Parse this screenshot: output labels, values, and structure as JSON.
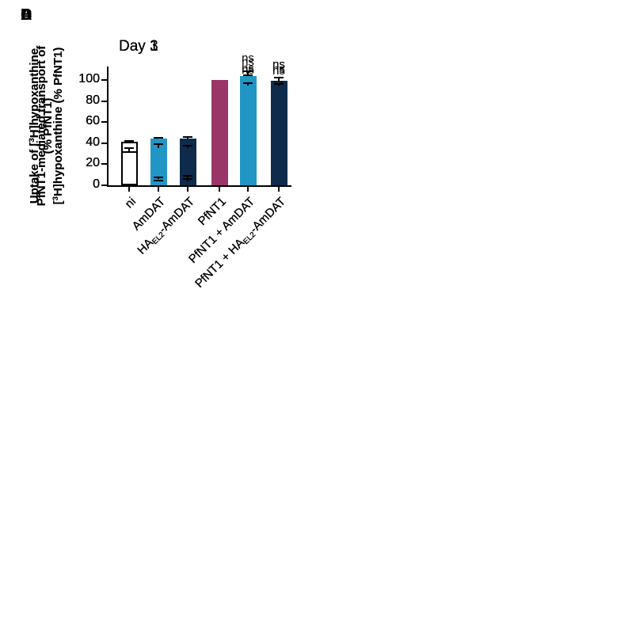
{
  "figure_bg": "#ffffff",
  "palette": {
    "white_bar_fill": "#ffffff",
    "white_bar_border": "#000000",
    "light_blue": "#2196c4",
    "navy": "#0e2b4c",
    "magenta": "#9a3568",
    "axis_color": "#000000",
    "text_color": "#000000"
  },
  "chart_data": [
    {
      "type": "bar",
      "panel_letter": "A",
      "title": "Day 1",
      "ylabel_lines": [
        "Uptake of [^3^H]hypoxanthine",
        "(% PfNT1)"
      ],
      "categories": [
        "ni",
        "AmDAT",
        "HA~EL2~-AmDAT",
        "PfNT1",
        "PfNT1 + AmDAT",
        "PfNT1 + HA~EL2~-AmDAT"
      ],
      "values": [
        41,
        44,
        44,
        100,
        102,
        99
      ],
      "errors": [
        2,
        2,
        2.5,
        0,
        3,
        4
      ],
      "annotations": [
        "",
        "",
        "",
        "",
        "ns",
        "ns"
      ],
      "bar_colors": [
        "white_bar",
        "light_blue",
        "navy",
        "magenta",
        "light_blue",
        "navy"
      ],
      "ylim": [
        0,
        112
      ],
      "yticks": [
        0,
        20,
        40,
        60,
        80,
        100
      ],
      "grid": false,
      "legend": "none"
    },
    {
      "type": "bar",
      "panel_letter": "B",
      "title": "Day 3",
      "ylabel_lines": [
        "Uptake of [^3^H]hypoxanthine",
        "(% PfNT1)"
      ],
      "categories": [
        "ni",
        "AmDAT",
        "HA~EL2~-AmDAT",
        "PfNT1",
        "PfNT1 + AmDAT",
        "PfNT1 + HA~EL2~-AmDAT"
      ],
      "values": [
        32,
        35,
        35,
        100,
        97,
        96
      ],
      "errors": [
        4,
        4.5,
        3,
        0,
        2,
        2.5
      ],
      "annotations": [
        "",
        "",
        "",
        "",
        "ns",
        "ns"
      ],
      "bar_colors": [
        "white_bar",
        "light_blue",
        "navy",
        "magenta",
        "light_blue",
        "navy"
      ],
      "ylim": [
        0,
        112
      ],
      "yticks": [
        0,
        20,
        40,
        60,
        80,
        100
      ],
      "grid": false,
      "legend": "none"
    },
    {
      "type": "bar",
      "panel_letter": "C",
      "title": "Day 1",
      "ylabel_lines": [
        "PfNT1-mediated transport of",
        "[^3^H]hypoxanthine (% PfNT1)"
      ],
      "categories": [
        "ni",
        "AmDAT",
        "HA~EL2~-AmDAT",
        "PfNT1",
        "PfNT1 + AmDAT",
        "PfNT1 + HA~EL2~-AmDAT"
      ],
      "values": [
        0,
        6,
        7,
        100,
        104,
        98
      ],
      "errors": [
        0,
        2.5,
        2.5,
        0,
        5,
        5
      ],
      "annotations": [
        "",
        "",
        "",
        "",
        "ns",
        "ns"
      ],
      "bar_colors": [
        "white_bar",
        "light_blue",
        "navy",
        "magenta",
        "light_blue",
        "navy"
      ],
      "ylim": [
        0,
        112
      ],
      "yticks": [
        0,
        20,
        40,
        60,
        80,
        100
      ],
      "grid": false,
      "legend": "none"
    },
    {
      "type": "bar",
      "panel_letter": "D",
      "title": "Day 3",
      "ylabel_lines": [
        "PfNT1-mediated transport of",
        "[^3^H]hypoxanthine (% PfNT1)"
      ],
      "categories": [
        "ni",
        "AmDAT",
        "HA~EL2~-AmDAT",
        "PfNT1",
        "PfNT1 + AmDAT",
        "PfNT1 + HA~EL2~-AmDAT"
      ],
      "values": [
        0,
        3.5,
        4,
        100,
        95,
        94
      ],
      "errors": [
        0,
        2,
        3,
        0,
        3,
        3
      ],
      "annotations": [
        "",
        "",
        "",
        "",
        "ns",
        "ns"
      ],
      "bar_colors": [
        "white_bar",
        "light_blue",
        "navy",
        "magenta",
        "light_blue",
        "navy"
      ],
      "ylim": [
        0,
        112
      ],
      "yticks": [
        0,
        20,
        40,
        60,
        80,
        100
      ],
      "grid": false,
      "legend": "none"
    }
  ]
}
